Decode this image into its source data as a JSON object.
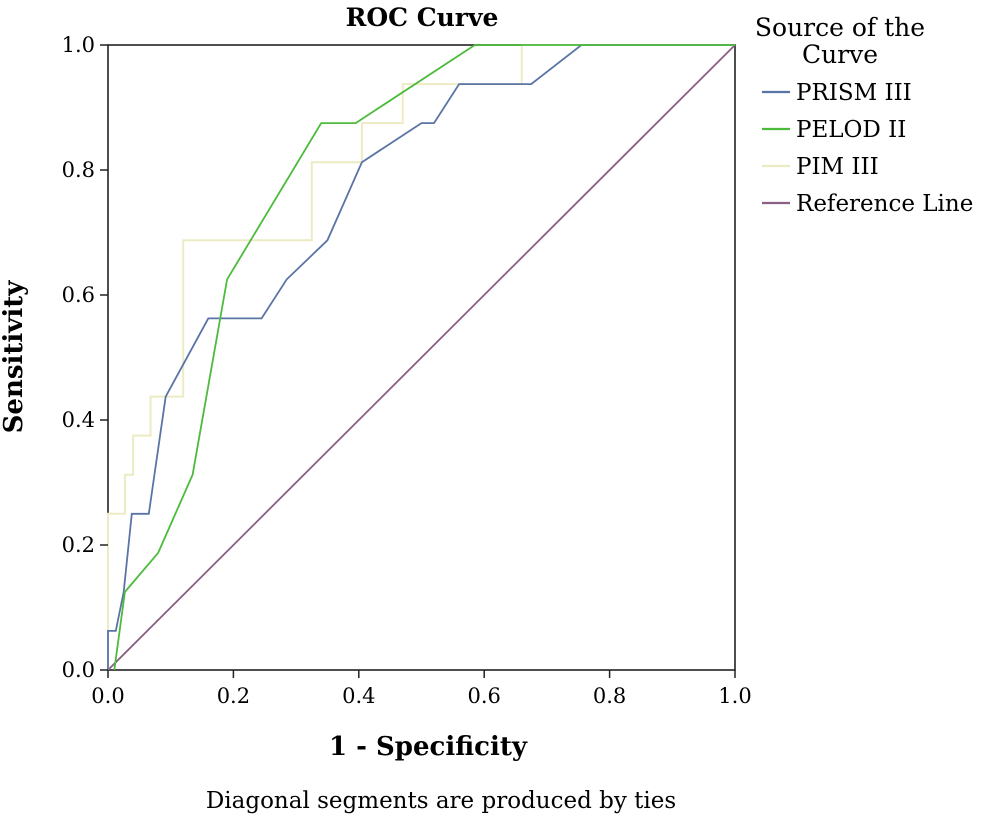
{
  "chart_data": {
    "type": "line",
    "title": "ROC Curve",
    "xlabel": "1 - Specificity",
    "ylabel": "Sensitivity",
    "xlim": [
      0,
      1
    ],
    "ylim": [
      0,
      1
    ],
    "xticks": [
      "0.0",
      "0.2",
      "0.4",
      "0.6",
      "0.8",
      "1.0"
    ],
    "yticks": [
      "0.0",
      "0.2",
      "0.4",
      "0.6",
      "0.8",
      "1.0"
    ],
    "grid": false,
    "legend": {
      "title_line1": "Source of the",
      "title_line2": "Curve",
      "placement": "right"
    },
    "footnote": "Diagonal segments are produced by ties",
    "series": [
      {
        "name": "PRISM III",
        "color": "#5a74a6",
        "points": [
          [
            0,
            0
          ],
          [
            0,
            0.0625
          ],
          [
            0.0125,
            0.0625
          ],
          [
            0.025,
            0.125
          ],
          [
            0.038,
            0.25
          ],
          [
            0.065,
            0.25
          ],
          [
            0.092,
            0.4375
          ],
          [
            0.16,
            0.5625
          ],
          [
            0.245,
            0.5625
          ],
          [
            0.285,
            0.625
          ],
          [
            0.35,
            0.6875
          ],
          [
            0.405,
            0.8125
          ],
          [
            0.5,
            0.875
          ],
          [
            0.52,
            0.875
          ],
          [
            0.56,
            0.9375
          ],
          [
            0.675,
            0.9375
          ],
          [
            0.755,
            1.0
          ],
          [
            1.0,
            1.0
          ]
        ]
      },
      {
        "name": "PELOD II",
        "color": "#4cbb3c",
        "points": [
          [
            0.01,
            0
          ],
          [
            0.027,
            0.125
          ],
          [
            0.08,
            0.1875
          ],
          [
            0.135,
            0.3125
          ],
          [
            0.19,
            0.625
          ],
          [
            0.34,
            0.875
          ],
          [
            0.395,
            0.875
          ],
          [
            0.585,
            1.0
          ],
          [
            1.0,
            1.0
          ]
        ]
      },
      {
        "name": "PIM III",
        "color": "#ecebc4",
        "points": [
          [
            0,
            0
          ],
          [
            0,
            0.25
          ],
          [
            0.027,
            0.25
          ],
          [
            0.027,
            0.3125
          ],
          [
            0.04,
            0.3125
          ],
          [
            0.04,
            0.375
          ],
          [
            0.068,
            0.375
          ],
          [
            0.068,
            0.4375
          ],
          [
            0.12,
            0.4375
          ],
          [
            0.12,
            0.6875
          ],
          [
            0.325,
            0.6875
          ],
          [
            0.325,
            0.8125
          ],
          [
            0.405,
            0.8125
          ],
          [
            0.405,
            0.875
          ],
          [
            0.47,
            0.875
          ],
          [
            0.47,
            0.9375
          ],
          [
            0.66,
            0.9375
          ],
          [
            0.66,
            1.0
          ],
          [
            1.0,
            1.0
          ]
        ]
      },
      {
        "name": "Reference Line",
        "color": "#8a5f82",
        "points": [
          [
            0,
            0
          ],
          [
            1,
            1
          ]
        ]
      }
    ]
  }
}
